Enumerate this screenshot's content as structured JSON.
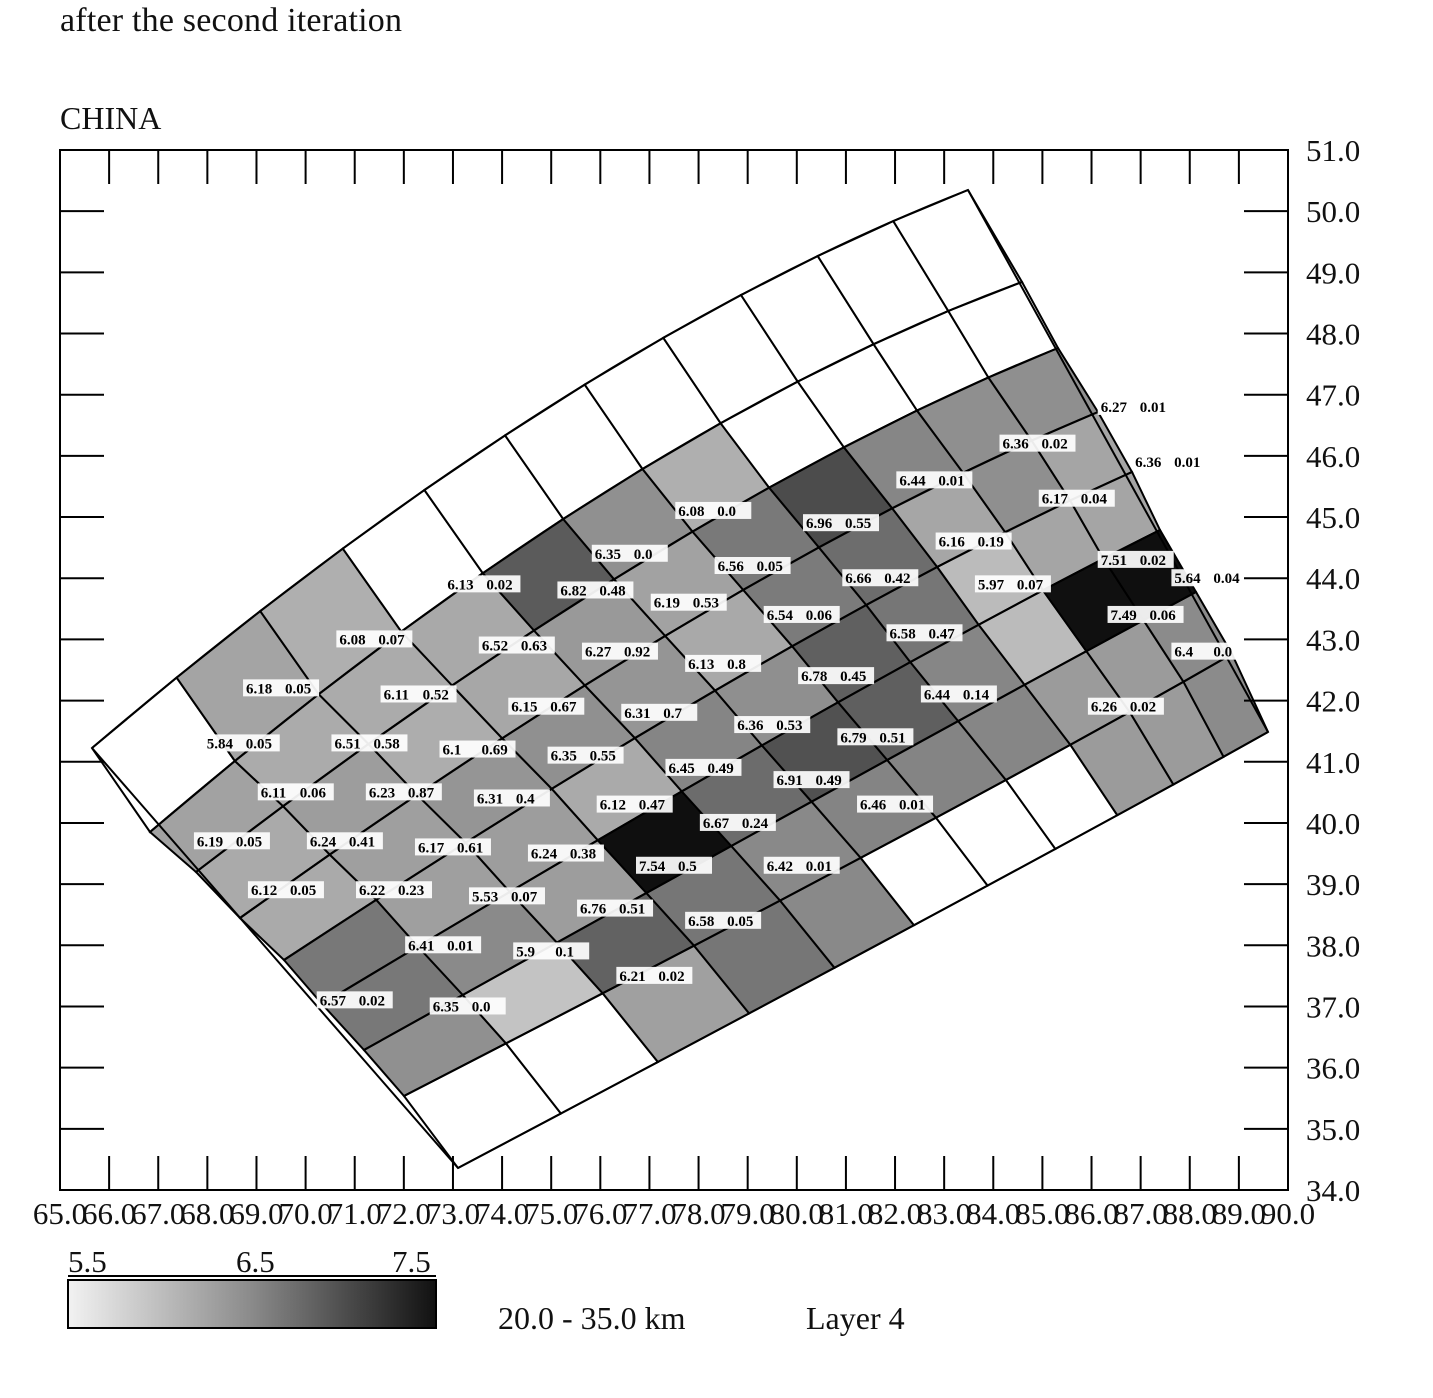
{
  "subtitle": "after the second iteration",
  "region": "CHINA",
  "axes": {
    "x_ticks": [
      "65.0",
      "66.0",
      "67.0",
      "68.0",
      "69.0",
      "70.0",
      "71.0",
      "72.0",
      "73.0",
      "74.0",
      "75.0",
      "76.0",
      "77.0",
      "78.0",
      "79.0",
      "80.0",
      "81.0",
      "82.0",
      "83.0",
      "84.0",
      "85.0",
      "86.0",
      "87.0",
      "88.0",
      "89.0",
      "90.0"
    ],
    "y_ticks": [
      "34.0",
      "35.0",
      "36.0",
      "37.0",
      "38.0",
      "39.0",
      "40.0",
      "41.0",
      "42.0",
      "43.0",
      "44.0",
      "45.0",
      "46.0",
      "47.0",
      "48.0",
      "49.0",
      "50.0",
      "51.0"
    ],
    "x_range": [
      65,
      90
    ],
    "y_range": [
      34,
      51
    ]
  },
  "grid_cells": [
    {
      "label": "6.27",
      "err": "0.01",
      "lon": 86.9,
      "lat": 46.8,
      "value": 6.27
    },
    {
      "label": "6.36",
      "err": "0.02",
      "lon": 84.9,
      "lat": 46.2,
      "value": 6.36
    },
    {
      "label": "6.36",
      "err": "0.01",
      "lon": 87.6,
      "lat": 45.9,
      "value": 6.36
    },
    {
      "label": "6.44",
      "err": "0.01",
      "lon": 82.8,
      "lat": 45.6,
      "value": 6.44
    },
    {
      "label": "6.17",
      "err": "0.04",
      "lon": 85.7,
      "lat": 45.3,
      "value": 6.17
    },
    {
      "label": "6.08",
      "err": "0.0",
      "lon": 78.3,
      "lat": 45.1,
      "value": 6.08
    },
    {
      "label": "6.96",
      "err": "0.55",
      "lon": 80.9,
      "lat": 44.9,
      "value": 6.96
    },
    {
      "label": "6.16",
      "err": "0.19",
      "lon": 83.6,
      "lat": 44.6,
      "value": 6.16
    },
    {
      "label": "6.35",
      "err": "0.0",
      "lon": 76.6,
      "lat": 44.4,
      "value": 6.35
    },
    {
      "label": "6.56",
      "err": "0.05",
      "lon": 79.1,
      "lat": 44.2,
      "value": 6.56
    },
    {
      "label": "7.51",
      "err": "0.02",
      "lon": 86.9,
      "lat": 44.3,
      "value": 7.51
    },
    {
      "label": "5.64",
      "err": "0.04",
      "lon": 88.4,
      "lat": 44.0,
      "value": 5.64
    },
    {
      "label": "6.66",
      "err": "0.42",
      "lon": 81.7,
      "lat": 44.0,
      "value": 6.66
    },
    {
      "label": "6.13",
      "err": "0.02",
      "lon": 73.6,
      "lat": 43.9,
      "value": 6.13
    },
    {
      "label": "6.82",
      "err": "0.48",
      "lon": 75.9,
      "lat": 43.8,
      "value": 6.82
    },
    {
      "label": "5.97",
      "err": "0.07",
      "lon": 84.4,
      "lat": 43.9,
      "value": 5.97
    },
    {
      "label": "6.19",
      "err": "0.53",
      "lon": 77.8,
      "lat": 43.6,
      "value": 6.19
    },
    {
      "label": "7.49",
      "err": "0.06",
      "lon": 87.1,
      "lat": 43.4,
      "value": 7.49
    },
    {
      "label": "6.54",
      "err": "0.06",
      "lon": 80.1,
      "lat": 43.4,
      "value": 6.54
    },
    {
      "label": "6.58",
      "err": "0.47",
      "lon": 82.6,
      "lat": 43.1,
      "value": 6.58
    },
    {
      "label": "6.08",
      "err": "0.07",
      "lon": 71.4,
      "lat": 43.0,
      "value": 6.08
    },
    {
      "label": "6.52",
      "err": "0.63",
      "lon": 74.3,
      "lat": 42.9,
      "value": 6.52
    },
    {
      "label": "6.27",
      "err": "0.92",
      "lon": 76.4,
      "lat": 42.8,
      "value": 6.27
    },
    {
      "label": "6.4",
      "err": "0.0",
      "lon": 88.4,
      "lat": 42.8,
      "value": 6.4
    },
    {
      "label": "6.13",
      "err": "0.8",
      "lon": 78.5,
      "lat": 42.6,
      "value": 6.13
    },
    {
      "label": "6.78",
      "err": "0.45",
      "lon": 80.8,
      "lat": 42.4,
      "value": 6.78
    },
    {
      "label": "6.18",
      "err": "0.05",
      "lon": 69.5,
      "lat": 42.2,
      "value": 6.18
    },
    {
      "label": "6.11",
      "err": "0.52",
      "lon": 72.3,
      "lat": 42.1,
      "value": 6.11
    },
    {
      "label": "6.44",
      "err": "0.14",
      "lon": 83.3,
      "lat": 42.1,
      "value": 6.44
    },
    {
      "label": "6.15",
      "err": "0.67",
      "lon": 74.9,
      "lat": 41.9,
      "value": 6.15
    },
    {
      "label": "6.26",
      "err": "0.02",
      "lon": 86.7,
      "lat": 41.9,
      "value": 6.26
    },
    {
      "label": "6.31",
      "err": "0.7",
      "lon": 77.2,
      "lat": 41.8,
      "value": 6.31
    },
    {
      "label": "6.36",
      "err": "0.53",
      "lon": 79.5,
      "lat": 41.6,
      "value": 6.36
    },
    {
      "label": "6.79",
      "err": "0.51",
      "lon": 81.6,
      "lat": 41.4,
      "value": 6.79
    },
    {
      "label": "5.84",
      "err": "0.05",
      "lon": 68.7,
      "lat": 41.3,
      "value": 5.84
    },
    {
      "label": "6.51",
      "err": "0.58",
      "lon": 71.3,
      "lat": 41.3,
      "value": 6.51
    },
    {
      "label": "6.1",
      "err": "0.69",
      "lon": 73.5,
      "lat": 41.2,
      "value": 6.1
    },
    {
      "label": "6.35",
      "err": "0.55",
      "lon": 75.7,
      "lat": 41.1,
      "value": 6.35
    },
    {
      "label": "6.45",
      "err": "0.49",
      "lon": 78.1,
      "lat": 40.9,
      "value": 6.45
    },
    {
      "label": "6.91",
      "err": "0.49",
      "lon": 80.3,
      "lat": 40.7,
      "value": 6.91
    },
    {
      "label": "6.11",
      "err": "0.06",
      "lon": 69.8,
      "lat": 40.5,
      "value": 6.11
    },
    {
      "label": "6.23",
      "err": "0.87",
      "lon": 72.0,
      "lat": 40.5,
      "value": 6.23
    },
    {
      "label": "6.31",
      "err": "0.4",
      "lon": 74.2,
      "lat": 40.4,
      "value": 6.31
    },
    {
      "label": "6.46",
      "err": "0.01",
      "lon": 82.0,
      "lat": 40.3,
      "value": 6.46
    },
    {
      "label": "6.12",
      "err": "0.47",
      "lon": 76.7,
      "lat": 40.3,
      "value": 6.12
    },
    {
      "label": "6.67",
      "err": "0.24",
      "lon": 78.8,
      "lat": 40.0,
      "value": 6.67
    },
    {
      "label": "6.19",
      "err": "0.05",
      "lon": 68.5,
      "lat": 39.7,
      "value": 6.19
    },
    {
      "label": "6.24",
      "err": "0.41",
      "lon": 70.8,
      "lat": 39.7,
      "value": 6.24
    },
    {
      "label": "6.17",
      "err": "0.61",
      "lon": 73.0,
      "lat": 39.6,
      "value": 6.17
    },
    {
      "label": "6.24",
      "err": "0.38",
      "lon": 75.3,
      "lat": 39.5,
      "value": 6.24
    },
    {
      "label": "7.54",
      "err": "0.5",
      "lon": 77.5,
      "lat": 39.3,
      "value": 7.54
    },
    {
      "label": "6.42",
      "err": "0.01",
      "lon": 80.1,
      "lat": 39.3,
      "value": 6.42
    },
    {
      "label": "6.12",
      "err": "0.05",
      "lon": 69.6,
      "lat": 38.9,
      "value": 6.12
    },
    {
      "label": "6.22",
      "err": "0.23",
      "lon": 71.8,
      "lat": 38.9,
      "value": 6.22
    },
    {
      "label": "5.53",
      "err": "0.07",
      "lon": 74.1,
      "lat": 38.8,
      "value": 5.53
    },
    {
      "label": "6.76",
      "err": "0.51",
      "lon": 76.3,
      "lat": 38.6,
      "value": 6.76
    },
    {
      "label": "6.58",
      "err": "0.05",
      "lon": 78.5,
      "lat": 38.4,
      "value": 6.58
    },
    {
      "label": "6.41",
      "err": "0.01",
      "lon": 72.8,
      "lat": 38.0,
      "value": 6.41
    },
    {
      "label": "5.9",
      "err": "0.1",
      "lon": 75.0,
      "lat": 37.9,
      "value": 5.9
    },
    {
      "label": "6.21",
      "err": "0.02",
      "lon": 77.1,
      "lat": 37.5,
      "value": 6.21
    },
    {
      "label": "6.57",
      "err": "0.02",
      "lon": 71.0,
      "lat": 37.1,
      "value": 6.57
    },
    {
      "label": "6.35",
      "err": "0.0",
      "lon": 73.3,
      "lat": 37.0,
      "value": 6.35
    }
  ],
  "legend": {
    "min_label": "5.5",
    "mid_label": "6.5",
    "max_label": "7.5",
    "range": [
      5.5,
      7.5
    ],
    "depth_label": "20.0 -  35.0 km",
    "layer_label": "Layer  4"
  }
}
